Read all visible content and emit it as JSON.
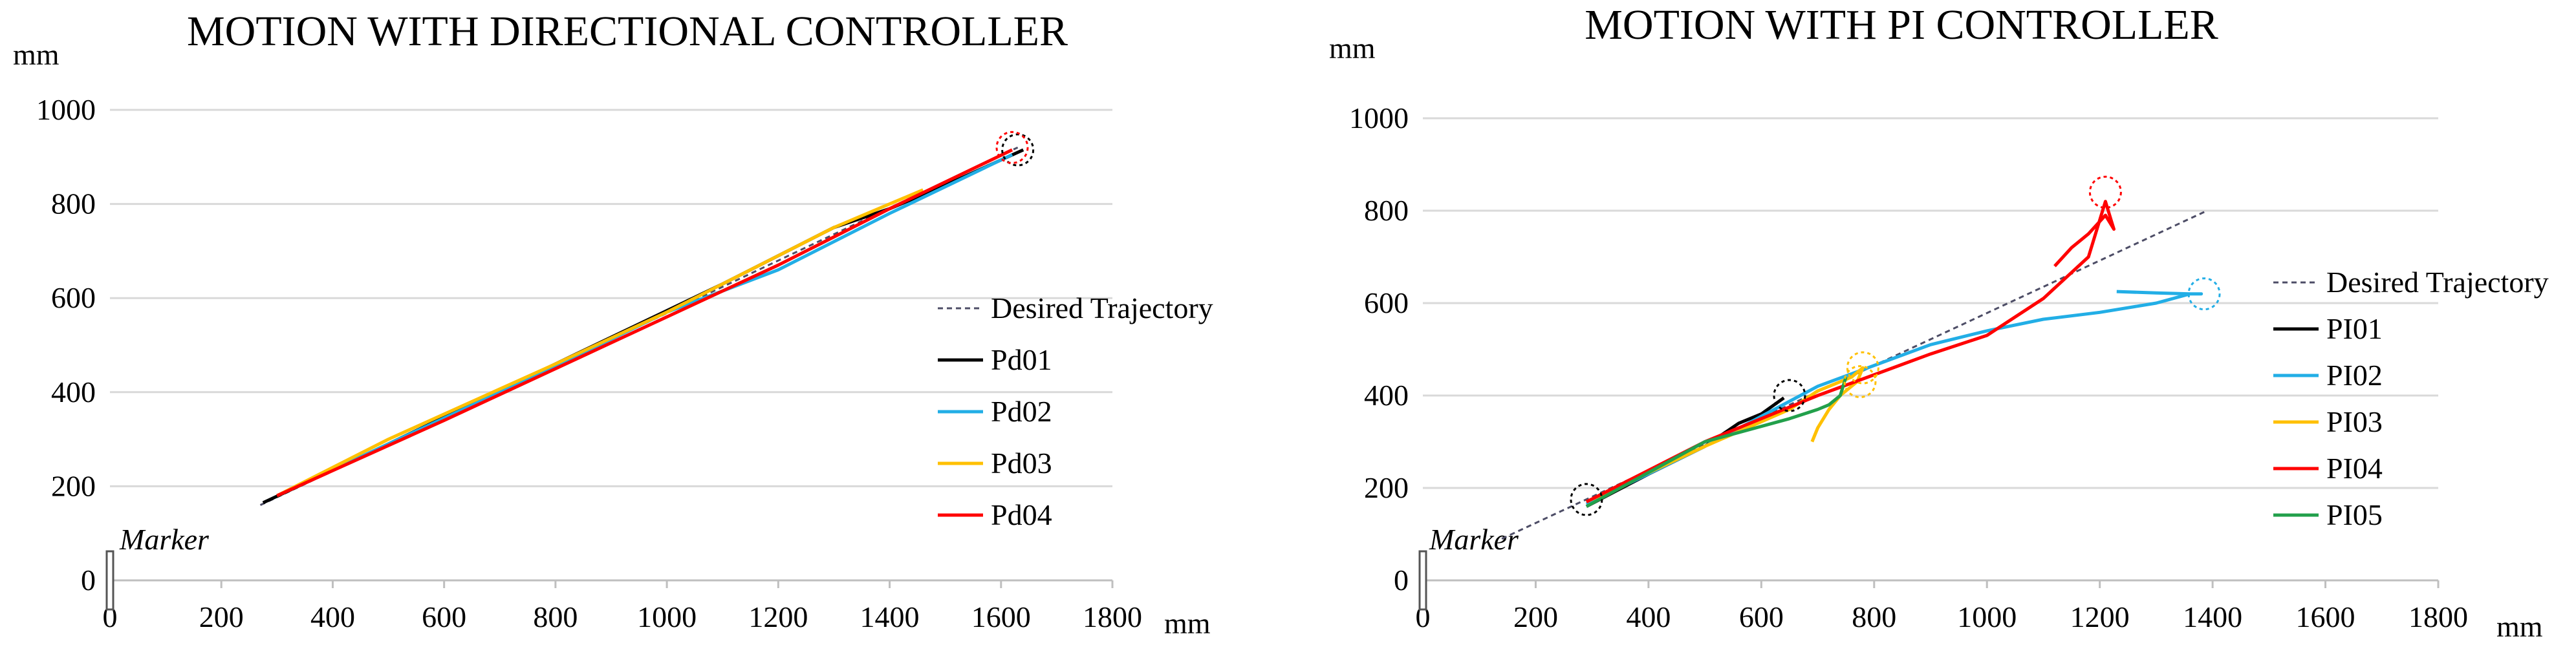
{
  "chart_data": [
    {
      "type": "line",
      "title": "MOTION WITH DIRECTIONAL CONTROLLER",
      "xlabel": "mm",
      "ylabel": "mm",
      "xlim": [
        0,
        1800
      ],
      "ylim": [
        0,
        1000
      ],
      "xticks": [
        "0",
        "200",
        "400",
        "600",
        "800",
        "1000",
        "1200",
        "1400",
        "1600",
        "1800"
      ],
      "yticks": [
        "0",
        "200",
        "400",
        "600",
        "800",
        "1000"
      ],
      "grid": "horizontal",
      "legend_position": "right",
      "annotation": "Marker",
      "series": [
        {
          "name": "Desired Trajectory",
          "color": "#4d4d66",
          "dash": true,
          "x": [
            270,
            1630
          ],
          "y": [
            160,
            920
          ]
        },
        {
          "name": "Pd01",
          "color": "#000000",
          "x": [
            275,
            500,
            800,
            1100,
            1300,
            1400,
            1500,
            1640
          ],
          "y": [
            165,
            290,
            460,
            630,
            750,
            790,
            840,
            915
          ]
        },
        {
          "name": "Pd02",
          "color": "#22aee6",
          "x": [
            300,
            500,
            800,
            1000,
            1200,
            1400,
            1620
          ],
          "y": [
            180,
            290,
            455,
            570,
            660,
            780,
            905
          ]
        },
        {
          "name": "Pd03",
          "color": "#ffc000",
          "x": [
            300,
            500,
            800,
            1000,
            1200,
            1300,
            1460
          ],
          "y": [
            180,
            300,
            460,
            570,
            690,
            750,
            830
          ]
        },
        {
          "name": "Pd04",
          "color": "#ff0000",
          "x": [
            300,
            600,
            900,
            1200,
            1400,
            1620
          ],
          "y": [
            180,
            340,
            505,
            670,
            790,
            915
          ]
        }
      ],
      "end_markers": [
        {
          "color": "#000000",
          "x": 1630,
          "y": 915
        },
        {
          "color": "#ff0000",
          "x": 1620,
          "y": 920
        }
      ]
    },
    {
      "type": "line",
      "title": "MOTION WITH PI CONTROLLER",
      "xlabel": "mm",
      "ylabel": "mm",
      "xlim": [
        0,
        1800
      ],
      "ylim": [
        0,
        1000
      ],
      "xticks": [
        "0",
        "200",
        "400",
        "600",
        "800",
        "1000",
        "1200",
        "1400",
        "1600",
        "1800"
      ],
      "yticks": [
        "0",
        "200",
        "400",
        "600",
        "800",
        "1000"
      ],
      "grid": "horizontal",
      "legend_position": "right",
      "annotation": "Marker",
      "series": [
        {
          "name": "Desired Trajectory",
          "color": "#4d4d66",
          "dash": true,
          "x": [
            140,
            1390
          ],
          "y": [
            90,
            800
          ]
        },
        {
          "name": "PI01",
          "color": "#000000",
          "x": [
            290,
            400,
            500,
            560,
            600,
            640
          ],
          "y": [
            160,
            230,
            290,
            340,
            360,
            395
          ]
        },
        {
          "name": "PI02",
          "color": "#22aee6",
          "x": [
            290,
            500,
            700,
            900,
            1000,
            1100,
            1200,
            1300,
            1360,
            1380,
            1360,
            1300,
            1230
          ],
          "y": [
            165,
            290,
            420,
            510,
            540,
            565,
            580,
            600,
            620,
            620,
            620,
            622,
            625
          ]
        },
        {
          "name": "PI03",
          "color": "#ffc000",
          "x": [
            290,
            500,
            650,
            700,
            760,
            780,
            770,
            740,
            720,
            700,
            690
          ],
          "y": [
            170,
            290,
            370,
            410,
            440,
            460,
            430,
            400,
            370,
            330,
            300
          ]
        },
        {
          "name": "PI04",
          "color": "#ff0000",
          "x": [
            290,
            500,
            700,
            900,
            1000,
            1100,
            1180,
            1210,
            1220,
            1225,
            1210,
            1180,
            1150,
            1120
          ],
          "y": [
            170,
            300,
            400,
            490,
            530,
            610,
            700,
            820,
            780,
            760,
            790,
            750,
            720,
            680
          ]
        },
        {
          "name": "PI05",
          "color": "#22a04b",
          "x": [
            290,
            500,
            650,
            700,
            720,
            740,
            750
          ],
          "y": [
            160,
            300,
            350,
            370,
            380,
            400,
            440
          ]
        }
      ],
      "end_markers": [
        {
          "color": "#000000",
          "x": 290,
          "y": 175
        },
        {
          "color": "#000000",
          "x": 650,
          "y": 400
        },
        {
          "color": "#ffc000",
          "x": 780,
          "y": 460
        },
        {
          "color": "#ffc000",
          "x": 775,
          "y": 430
        },
        {
          "color": "#22aee6",
          "x": 1385,
          "y": 620
        },
        {
          "color": "#ff0000",
          "x": 1210,
          "y": 840
        }
      ]
    }
  ]
}
